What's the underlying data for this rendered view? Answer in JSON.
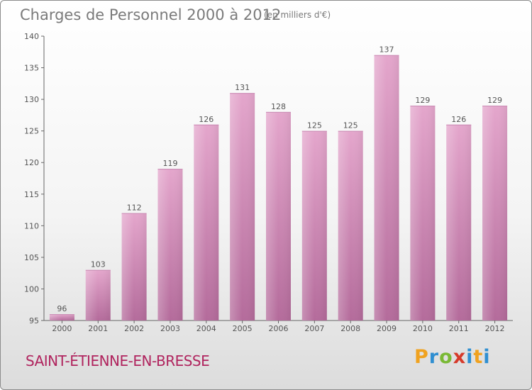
{
  "header": {
    "title": "Charges de Personnel 2000 à 2012",
    "subtitle": "(en milliers d'€)"
  },
  "footer": {
    "commune": "SAINT-ÉTIENNE-EN-BRESSE",
    "brand": "Proxiti"
  },
  "colors": {
    "bar_top": "#e4a6cc",
    "bar_bottom": "#b46b9b",
    "commune_text": "#b0245e"
  },
  "chart_data": {
    "type": "bar",
    "title": "Charges de Personnel 2000 à 2012",
    "subtitle": "(en milliers d'€)",
    "categories": [
      "2000",
      "2001",
      "2002",
      "2003",
      "2004",
      "2005",
      "2006",
      "2007",
      "2008",
      "2009",
      "2010",
      "2011",
      "2012"
    ],
    "values": [
      96,
      103,
      112,
      119,
      126,
      131,
      128,
      125,
      125,
      137,
      129,
      126,
      129
    ],
    "ylim": [
      95,
      140
    ],
    "yticks": [
      95,
      100,
      105,
      110,
      115,
      120,
      125,
      130,
      135,
      140
    ],
    "grid": false,
    "data_labels": true
  }
}
